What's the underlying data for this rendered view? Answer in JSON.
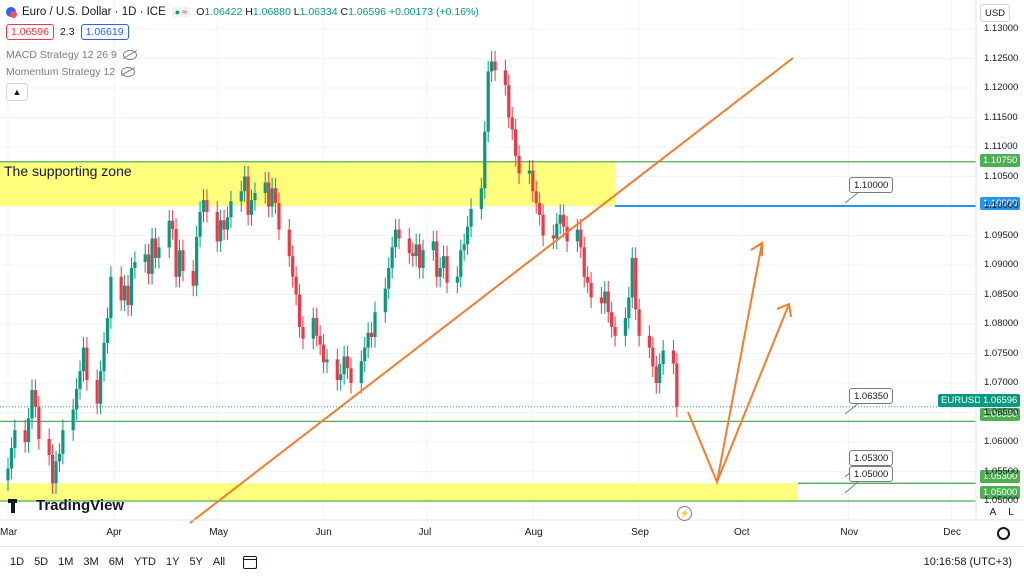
{
  "header": {
    "symbol_title": "Euro / U.S. Dollar · 1D · ICE",
    "ohlc": {
      "open_label": "O",
      "open": "1.06422",
      "high_label": "H",
      "high": "1.06880",
      "low_label": "L",
      "low": "1.06334",
      "close_label": "C",
      "close": "1.06596",
      "change": "+0.00173 (+0.16%)"
    },
    "bid": "1.06596",
    "spread": "2.3",
    "ask": "1.06619",
    "currency": "USD"
  },
  "indicators": [
    {
      "label": "MACD Strategy 12 26 9",
      "icon": "eye-off-icon"
    },
    {
      "label": "Momentum Strategy 12",
      "icon": "eye-off-icon"
    }
  ],
  "zone_label": "The supporting zone",
  "logo_text": "TradingView",
  "bottom_bar": {
    "timeframes": [
      "1D",
      "5D",
      "1M",
      "3M",
      "6M",
      "YTD",
      "1Y",
      "5Y",
      "All"
    ],
    "clock": "10:16:58 (UTC+3)"
  },
  "scale_buttons": [
    "A",
    "L"
  ],
  "ray_labels": [
    "1.10000",
    "1.06350",
    "1.05300",
    "1.05000"
  ],
  "axis_tags": {
    "level_1_10750": "1.10750",
    "level_1_10000": "1.10000",
    "symbol_tag": "EURUSD",
    "last_price": "1.06596",
    "level_1_06350": "1.06350",
    "level_1_05300": "1.05300",
    "level_1_05000": "1.05000"
  },
  "colors": {
    "up": "#089981",
    "down": "#f23645",
    "zone": "#ffff66",
    "trend": "#f57c2a",
    "level_blue": "#2196f3",
    "level_green": "#4caf50"
  },
  "chart_data": {
    "type": "candlestick",
    "y_ticks": [
      "1.13000",
      "1.12500",
      "1.12000",
      "1.11500",
      "1.11000",
      "1.10500",
      "1.10000",
      "1.09500",
      "1.09000",
      "1.08500",
      "1.08000",
      "1.07500",
      "1.07000",
      "1.06500",
      "1.06000",
      "1.05500",
      "1.05000"
    ],
    "x_ticks": [
      "Mar",
      "Apr",
      "May",
      "Jun",
      "Jul",
      "Aug",
      "Sep",
      "Oct",
      "Nov",
      "Dec"
    ],
    "ylim": [
      1.0455,
      1.1322
    ],
    "start_date": "2023-03-01",
    "closes": [
      1.0555,
      1.059,
      1.062,
      1.06,
      1.064,
      1.0688,
      1.066,
      1.0605,
      1.0578,
      1.053,
      1.0567,
      1.058,
      1.062,
      1.0655,
      1.069,
      1.072,
      1.076,
      1.0705,
      1.0665,
      1.072,
      1.0768,
      1.081,
      1.088,
      1.084,
      1.0865,
      1.0832,
      1.0895,
      1.0905,
      1.0918,
      1.0885,
      1.0945,
      1.0912,
      1.093,
      1.0975,
      1.0961,
      1.088,
      1.0925,
      1.089,
      1.0865,
      1.0948,
      1.099,
      1.101,
      1.099,
      1.094,
      1.0976,
      1.096,
      1.0981,
      1.1008,
      1.1025,
      1.105,
      1.0985,
      1.101,
      1.1022,
      1.104,
      1.0999,
      1.103,
      1.1005,
      1.096,
      1.0915,
      1.088,
      1.085,
      1.0795,
      1.0775,
      1.081,
      1.078,
      1.0765,
      1.0735,
      1.074,
      1.0705,
      1.0715,
      1.0745,
      1.0725,
      1.07,
      1.0737,
      1.076,
      1.0785,
      1.0778,
      1.082,
      1.086,
      1.0895,
      1.093,
      1.096,
      1.0945,
      1.092,
      1.0915,
      1.0935,
      1.0895,
      1.0925,
      1.094,
      1.088,
      1.0895,
      1.0915,
      1.087,
      1.088,
      1.0925,
      1.0935,
      1.0965,
      1.0995,
      1.103,
      1.1126,
      1.1228,
      1.1245,
      1.123,
      1.1205,
      1.115,
      1.113,
      1.1085,
      1.1055,
      1.106,
      1.1025,
      1.1005,
      1.0985,
      1.095,
      1.0945,
      1.097,
      1.0985,
      1.0965,
      1.094,
      1.096,
      1.093,
      1.088,
      1.087,
      1.0845,
      1.0835,
      1.0855,
      1.082,
      1.0795,
      1.078,
      1.081,
      1.0845,
      1.0912,
      1.0825,
      1.078,
      1.076,
      1.0728,
      1.07,
      1.0732,
      1.0755,
      1.0733,
      1.066
    ]
  }
}
